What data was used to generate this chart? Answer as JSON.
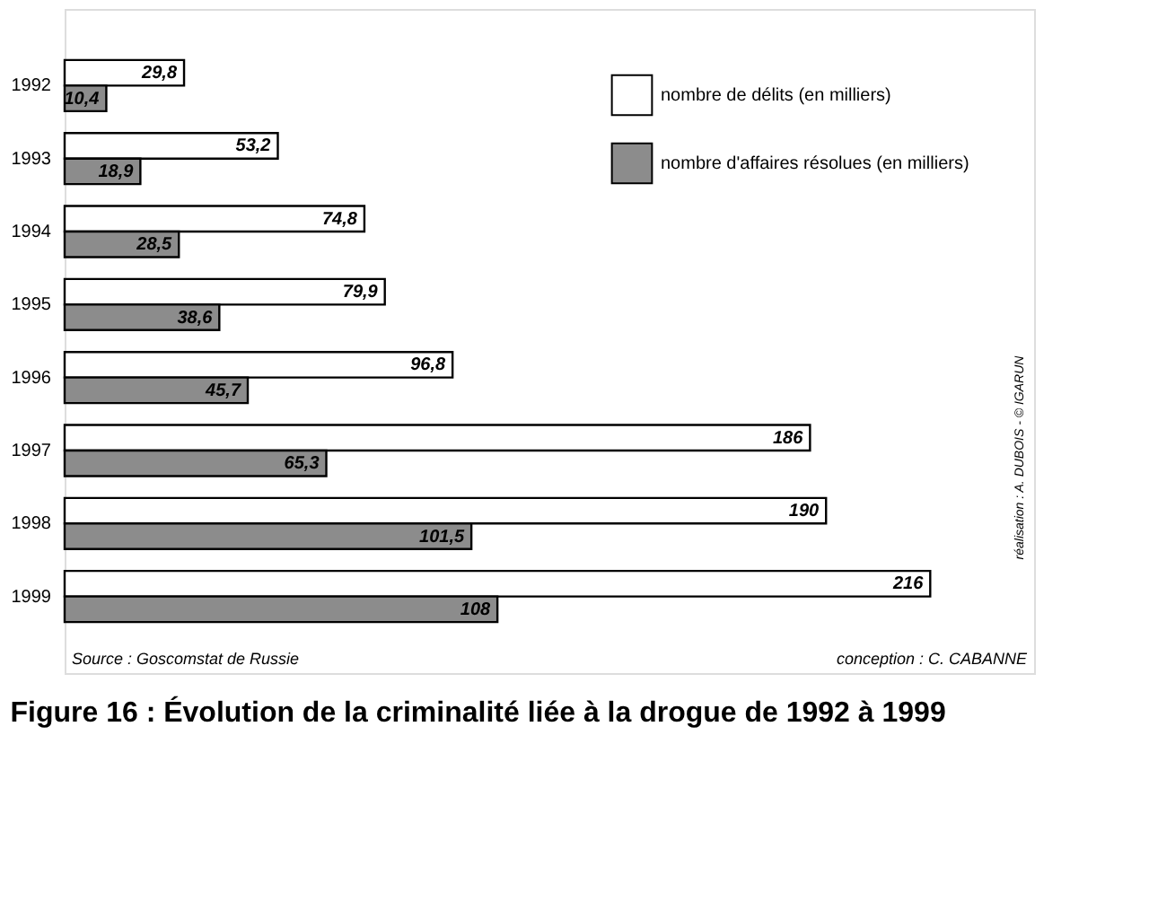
{
  "chart_data": {
    "type": "bar",
    "orientation": "horizontal",
    "title": "Figure 16 : Évolution de la criminalité liée à la drogue de 1992 à 1999",
    "categories": [
      "1992",
      "1993",
      "1994",
      "1995",
      "1996",
      "1997",
      "1998",
      "1999"
    ],
    "series": [
      {
        "name": "nombre de délits (en milliers)",
        "color": "#ffffff",
        "values": [
          29.8,
          53.2,
          74.8,
          79.9,
          96.8,
          186,
          190,
          216
        ],
        "value_labels": [
          "29,8",
          "53,2",
          "74,8",
          "79,9",
          "96,8",
          "186",
          "190",
          "216"
        ]
      },
      {
        "name": "nombre d'affaires résolues (en milliers)",
        "color": "#8c8c8c",
        "values": [
          10.4,
          18.9,
          28.5,
          38.6,
          45.7,
          65.3,
          101.5,
          108
        ],
        "value_labels": [
          "10,4",
          "18,9",
          "28,5",
          "38,6",
          "45,7",
          "65,3",
          "101,5",
          "108"
        ]
      }
    ],
    "legend": "top right",
    "annotations": [
      "Source : Goscomstat de Russie",
      "conception : C. CABANNE",
      "réalisation : A. DUBOIS - © IGARUN"
    ]
  }
}
